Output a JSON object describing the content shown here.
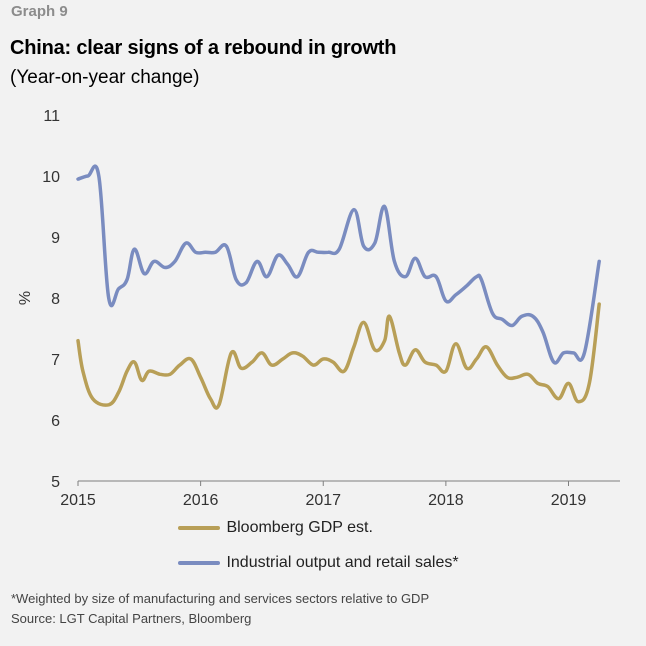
{
  "header": {
    "graph_label": "Graph 9",
    "title": "China: clear signs of a rebound in growth",
    "subtitle": "(Year-on-year change)"
  },
  "chart_data": {
    "type": "line",
    "ylabel": "%",
    "ylim": [
      5,
      11
    ],
    "yticks": [
      5,
      6,
      7,
      8,
      9,
      10,
      11
    ],
    "xlim": [
      2015,
      2019.42
    ],
    "xticks": [
      2015,
      2016,
      2017,
      2018,
      2019
    ],
    "grid": false,
    "legend_position": "bottom",
    "colors": {
      "gdp": "#b89f57",
      "industrial": "#7a8cc0"
    },
    "series": [
      {
        "name": "Bloomberg GDP est.",
        "color": "#b89f57",
        "points": [
          [
            2015.0,
            7.3
          ],
          [
            2015.04,
            6.8
          ],
          [
            2015.12,
            6.35
          ],
          [
            2015.25,
            6.25
          ],
          [
            2015.33,
            6.45
          ],
          [
            2015.4,
            6.8
          ],
          [
            2015.46,
            6.95
          ],
          [
            2015.52,
            6.65
          ],
          [
            2015.58,
            6.8
          ],
          [
            2015.67,
            6.75
          ],
          [
            2015.75,
            6.75
          ],
          [
            2015.83,
            6.9
          ],
          [
            2015.92,
            7.0
          ],
          [
            2016.0,
            6.7
          ],
          [
            2016.08,
            6.35
          ],
          [
            2016.15,
            6.25
          ],
          [
            2016.25,
            7.1
          ],
          [
            2016.33,
            6.85
          ],
          [
            2016.42,
            6.95
          ],
          [
            2016.5,
            7.1
          ],
          [
            2016.58,
            6.9
          ],
          [
            2016.67,
            7.0
          ],
          [
            2016.75,
            7.1
          ],
          [
            2016.83,
            7.05
          ],
          [
            2016.92,
            6.9
          ],
          [
            2017.0,
            7.0
          ],
          [
            2017.08,
            6.95
          ],
          [
            2017.17,
            6.8
          ],
          [
            2017.25,
            7.2
          ],
          [
            2017.33,
            7.6
          ],
          [
            2017.42,
            7.15
          ],
          [
            2017.5,
            7.3
          ],
          [
            2017.54,
            7.7
          ],
          [
            2017.62,
            7.1
          ],
          [
            2017.67,
            6.9
          ],
          [
            2017.75,
            7.15
          ],
          [
            2017.83,
            6.95
          ],
          [
            2017.92,
            6.9
          ],
          [
            2018.0,
            6.8
          ],
          [
            2018.08,
            7.25
          ],
          [
            2018.17,
            6.85
          ],
          [
            2018.25,
            7.0
          ],
          [
            2018.33,
            7.2
          ],
          [
            2018.42,
            6.9
          ],
          [
            2018.5,
            6.7
          ],
          [
            2018.58,
            6.7
          ],
          [
            2018.67,
            6.75
          ],
          [
            2018.75,
            6.6
          ],
          [
            2018.83,
            6.55
          ],
          [
            2018.92,
            6.35
          ],
          [
            2019.0,
            6.6
          ],
          [
            2019.08,
            6.3
          ],
          [
            2019.17,
            6.6
          ],
          [
            2019.25,
            7.9
          ]
        ]
      },
      {
        "name": "Industrial output and retail sales*",
        "color": "#7a8cc0",
        "points": [
          [
            2015.0,
            9.95
          ],
          [
            2015.08,
            10.0
          ],
          [
            2015.17,
            10.0
          ],
          [
            2015.25,
            8.0
          ],
          [
            2015.33,
            8.15
          ],
          [
            2015.4,
            8.3
          ],
          [
            2015.46,
            8.8
          ],
          [
            2015.54,
            8.4
          ],
          [
            2015.62,
            8.6
          ],
          [
            2015.71,
            8.5
          ],
          [
            2015.79,
            8.6
          ],
          [
            2015.88,
            8.9
          ],
          [
            2015.96,
            8.75
          ],
          [
            2016.04,
            8.75
          ],
          [
            2016.12,
            8.75
          ],
          [
            2016.21,
            8.85
          ],
          [
            2016.29,
            8.3
          ],
          [
            2016.37,
            8.25
          ],
          [
            2016.46,
            8.6
          ],
          [
            2016.54,
            8.35
          ],
          [
            2016.63,
            8.7
          ],
          [
            2016.71,
            8.55
          ],
          [
            2016.79,
            8.35
          ],
          [
            2016.88,
            8.75
          ],
          [
            2016.96,
            8.75
          ],
          [
            2017.04,
            8.75
          ],
          [
            2017.13,
            8.8
          ],
          [
            2017.25,
            9.45
          ],
          [
            2017.33,
            8.85
          ],
          [
            2017.42,
            8.9
          ],
          [
            2017.5,
            9.5
          ],
          [
            2017.58,
            8.6
          ],
          [
            2017.67,
            8.35
          ],
          [
            2017.75,
            8.65
          ],
          [
            2017.83,
            8.35
          ],
          [
            2017.92,
            8.35
          ],
          [
            2018.0,
            7.95
          ],
          [
            2018.08,
            8.05
          ],
          [
            2018.17,
            8.2
          ],
          [
            2018.25,
            8.35
          ],
          [
            2018.29,
            8.3
          ],
          [
            2018.38,
            7.75
          ],
          [
            2018.46,
            7.65
          ],
          [
            2018.54,
            7.55
          ],
          [
            2018.62,
            7.7
          ],
          [
            2018.71,
            7.7
          ],
          [
            2018.79,
            7.45
          ],
          [
            2018.88,
            6.95
          ],
          [
            2018.96,
            7.1
          ],
          [
            2019.04,
            7.1
          ],
          [
            2019.13,
            7.1
          ],
          [
            2019.25,
            8.6
          ]
        ]
      }
    ]
  },
  "footnotes": {
    "note": "*Weighted by size of manufacturing and services sectors relative to GDP",
    "source": "Source: LGT Capital Partners, Bloomberg"
  }
}
